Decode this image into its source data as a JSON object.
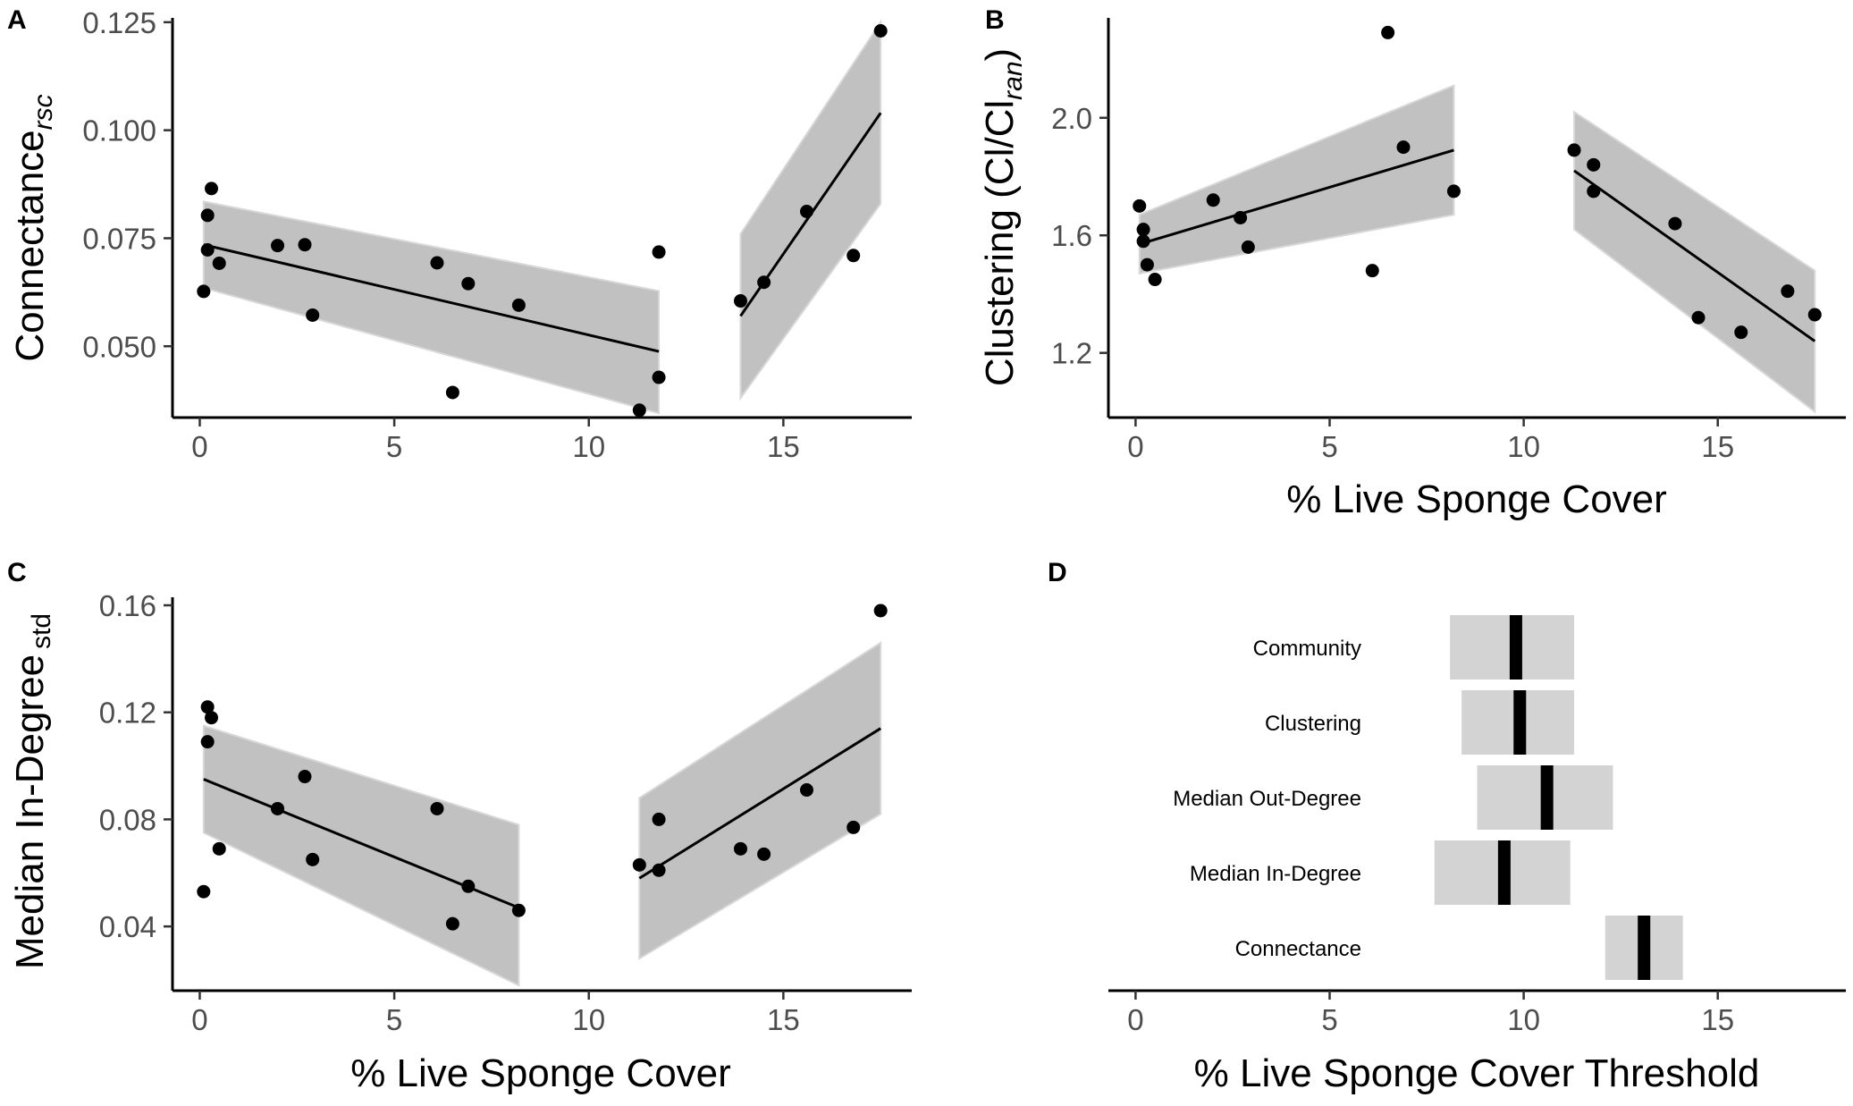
{
  "figure": {
    "panels": [
      "A",
      "B",
      "C",
      "D"
    ]
  },
  "chart_data": [
    {
      "id": "A",
      "type": "scatter",
      "title": "",
      "ylabel": "Connectance",
      "ylabel_sub": "rsc",
      "xlabel": "",
      "xlim": [
        -0.7,
        18.3
      ],
      "ylim": [
        0.0335,
        0.126
      ],
      "xticks": [
        0,
        5,
        10,
        15
      ],
      "xtick_labels": [
        "0",
        "5",
        "10",
        "15"
      ],
      "yticks": [
        0.05,
        0.075,
        0.1,
        0.125
      ],
      "ytick_labels": [
        "0.050",
        "0.075",
        "0.100",
        "0.125"
      ],
      "points": [
        [
          0.1,
          0.0627
        ],
        [
          0.2,
          0.0803
        ],
        [
          0.2,
          0.0723
        ],
        [
          0.3,
          0.0865
        ],
        [
          0.5,
          0.0692
        ],
        [
          2.0,
          0.0733
        ],
        [
          2.7,
          0.0735
        ],
        [
          2.9,
          0.0572
        ],
        [
          6.1,
          0.0693
        ],
        [
          6.5,
          0.0393
        ],
        [
          6.9,
          0.0645
        ],
        [
          8.2,
          0.0595
        ],
        [
          11.3,
          0.0352
        ],
        [
          11.8,
          0.0428
        ],
        [
          11.8,
          0.0718
        ],
        [
          13.9,
          0.0605
        ],
        [
          14.5,
          0.0648
        ],
        [
          15.6,
          0.0812
        ],
        [
          16.8,
          0.071
        ],
        [
          17.5,
          0.123
        ]
      ],
      "fits": [
        {
          "x": [
            0.1,
            11.8
          ],
          "y": [
            0.0735,
            0.0488
          ],
          "lower": [
            0.0635,
            0.0345
          ],
          "upper": [
            0.0835,
            0.0628
          ]
        },
        {
          "x": [
            13.9,
            17.5
          ],
          "y": [
            0.057,
            0.104
          ],
          "lower": [
            0.038,
            0.083
          ],
          "upper": [
            0.076,
            0.125
          ]
        }
      ]
    },
    {
      "id": "B",
      "type": "scatter",
      "title": "",
      "ylabel": "Clustering (Cl/Cl",
      "ylabel_sub": "ran",
      "ylabel_end": ")",
      "xlabel": "% Live Sponge Cover",
      "xlim": [
        -0.7,
        18.3
      ],
      "ylim": [
        0.98,
        2.34
      ],
      "xticks": [
        0,
        5,
        10,
        15
      ],
      "xtick_labels": [
        "0",
        "5",
        "10",
        "15"
      ],
      "yticks": [
        1.2,
        1.6,
        2.0
      ],
      "ytick_labels": [
        "1.2",
        "1.6",
        "2.0"
      ],
      "points": [
        [
          0.1,
          1.7
        ],
        [
          0.2,
          1.62
        ],
        [
          0.2,
          1.58
        ],
        [
          0.3,
          1.5
        ],
        [
          0.5,
          1.45
        ],
        [
          2.0,
          1.72
        ],
        [
          2.7,
          1.66
        ],
        [
          2.9,
          1.56
        ],
        [
          6.1,
          1.48
        ],
        [
          6.5,
          2.29
        ],
        [
          6.9,
          1.9
        ],
        [
          8.2,
          1.75
        ],
        [
          11.3,
          1.89
        ],
        [
          11.8,
          1.84
        ],
        [
          11.8,
          1.75
        ],
        [
          13.9,
          1.64
        ],
        [
          14.5,
          1.32
        ],
        [
          15.6,
          1.27
        ],
        [
          16.8,
          1.41
        ],
        [
          17.5,
          1.33
        ]
      ],
      "fits": [
        {
          "x": [
            0.1,
            8.2
          ],
          "y": [
            1.57,
            1.89
          ],
          "lower": [
            1.47,
            1.67
          ],
          "upper": [
            1.67,
            2.11
          ]
        },
        {
          "x": [
            11.3,
            17.5
          ],
          "y": [
            1.82,
            1.24
          ],
          "lower": [
            1.62,
            1.0
          ],
          "upper": [
            2.02,
            1.48
          ]
        }
      ]
    },
    {
      "id": "C",
      "type": "scatter",
      "title": "",
      "ylabel": "Median In-Degree",
      "ylabel_sub": "std",
      "xlabel": "% Live Sponge Cover",
      "xlim": [
        -0.7,
        18.3
      ],
      "ylim": [
        0.016,
        0.163
      ],
      "xticks": [
        0,
        5,
        10,
        15
      ],
      "xtick_labels": [
        "0",
        "5",
        "10",
        "15"
      ],
      "yticks": [
        0.04,
        0.08,
        0.12,
        0.16
      ],
      "ytick_labels": [
        "0.04",
        "0.08",
        "0.12",
        "0.16"
      ],
      "points": [
        [
          0.1,
          0.053
        ],
        [
          0.2,
          0.122
        ],
        [
          0.2,
          0.109
        ],
        [
          0.3,
          0.118
        ],
        [
          0.5,
          0.069
        ],
        [
          2.0,
          0.084
        ],
        [
          2.7,
          0.096
        ],
        [
          2.9,
          0.065
        ],
        [
          6.1,
          0.084
        ],
        [
          6.5,
          0.041
        ],
        [
          6.9,
          0.055
        ],
        [
          8.2,
          0.046
        ],
        [
          11.3,
          0.063
        ],
        [
          11.8,
          0.08
        ],
        [
          11.8,
          0.061
        ],
        [
          13.9,
          0.069
        ],
        [
          14.5,
          0.067
        ],
        [
          15.6,
          0.091
        ],
        [
          16.8,
          0.077
        ],
        [
          17.5,
          0.158
        ]
      ],
      "fits": [
        {
          "x": [
            0.1,
            8.2
          ],
          "y": [
            0.095,
            0.047
          ],
          "lower": [
            0.075,
            0.018
          ],
          "upper": [
            0.115,
            0.078
          ]
        },
        {
          "x": [
            11.3,
            17.5
          ],
          "y": [
            0.058,
            0.114
          ],
          "lower": [
            0.028,
            0.082
          ],
          "upper": [
            0.088,
            0.146
          ]
        }
      ]
    },
    {
      "id": "D",
      "type": "interval",
      "title": "",
      "xlabel": "% Live Sponge Cover Threshold",
      "xlim": [
        -0.7,
        18.3
      ],
      "xticks": [
        0,
        5,
        10,
        15
      ],
      "xtick_labels": [
        "0",
        "5",
        "10",
        "15"
      ],
      "categories": [
        "Community",
        "Clustering",
        "Median Out-Degree",
        "Median In-Degree",
        "Connectance"
      ],
      "estimates": [
        9.8,
        9.9,
        10.6,
        9.5,
        13.1
      ],
      "lower": [
        8.1,
        8.4,
        8.8,
        7.7,
        12.1
      ],
      "upper": [
        11.3,
        11.3,
        12.3,
        11.2,
        14.1
      ]
    }
  ]
}
